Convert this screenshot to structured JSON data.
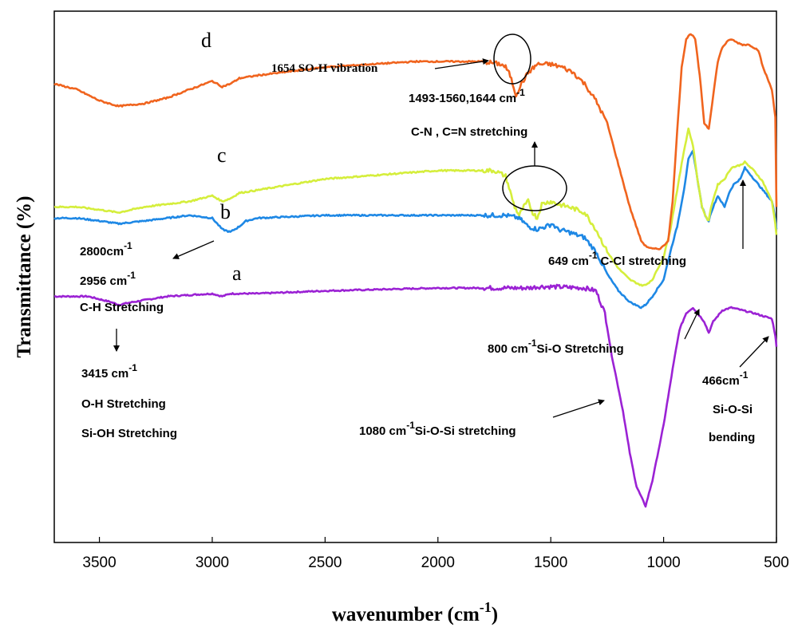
{
  "chart_data": {
    "type": "line",
    "title": "",
    "xlabel": "wavenumber (cm",
    "xlabel_sup": "-1",
    "xlabel_close": ")",
    "ylabel": "Transmittance (%)",
    "xlim": [
      3700,
      500
    ],
    "x_reversed": true,
    "y_ticks_shown": false,
    "x_ticks": [
      "3500",
      "3000",
      "2500",
      "2000",
      "1500",
      "1000",
      "500"
    ],
    "series": [
      {
        "name": "a",
        "color": "#9b22d4",
        "x": [
          3700,
          3550,
          3450,
          3415,
          3350,
          3200,
          3000,
          2956,
          2920,
          2800,
          2500,
          2000,
          1700,
          1600,
          1550,
          1500,
          1350,
          1300,
          1260,
          1230,
          1180,
          1150,
          1120,
          1080,
          1050,
          1000,
          960,
          930,
          900,
          870,
          820,
          800,
          780,
          740,
          700,
          650,
          600,
          560,
          520,
          505,
          500
        ],
        "y": [
          76,
          76,
          74,
          73,
          74,
          76,
          77,
          76,
          77,
          77,
          78,
          79,
          79,
          79,
          79.5,
          79.5,
          79,
          78,
          70,
          55,
          35,
          20,
          8,
          1,
          10,
          30,
          50,
          64,
          70,
          72,
          67,
          63,
          67,
          71,
          72,
          71,
          70,
          69,
          68,
          62,
          58
        ]
      },
      {
        "name": "b",
        "color": "#1e88e5",
        "x": [
          3700,
          3600,
          3500,
          3415,
          3300,
          3100,
          3000,
          2956,
          2920,
          2880,
          2850,
          2800,
          2500,
          2000,
          1700,
          1640,
          1600,
          1560,
          1520,
          1493,
          1470,
          1420,
          1350,
          1300,
          1250,
          1200,
          1150,
          1100,
          1080,
          1050,
          1000,
          970,
          940,
          910,
          890,
          870,
          850,
          830,
          810,
          800,
          790,
          760,
          730,
          710,
          690,
          660,
          640,
          600,
          560,
          520,
          505,
          500
        ],
        "y": [
          104,
          104,
          103,
          102,
          103,
          105,
          104,
          100,
          99,
          101,
          103,
          104,
          105,
          105,
          105,
          104,
          101,
          100,
          101,
          102,
          100,
          99,
          97,
          92,
          84,
          78,
          74,
          72,
          73,
          76,
          82,
          92,
          101,
          114,
          125,
          128,
          118,
          108,
          104,
          103,
          106,
          112,
          108,
          113,
          116,
          118,
          122,
          118,
          114,
          110,
          104,
          100
        ]
      },
      {
        "name": "c",
        "color": "#d5ee3c",
        "x": [
          3700,
          3600,
          3500,
          3415,
          3300,
          3100,
          3000,
          2956,
          2920,
          2880,
          2800,
          2500,
          2000,
          1750,
          1700,
          1660,
          1640,
          1620,
          1600,
          1580,
          1560,
          1540,
          1500,
          1470,
          1420,
          1350,
          1300,
          1250,
          1200,
          1150,
          1100,
          1080,
          1050,
          1000,
          970,
          940,
          910,
          890,
          870,
          850,
          830,
          810,
          800,
          790,
          760,
          730,
          700,
          660,
          640,
          600,
          560,
          520,
          505,
          500
        ],
        "y": [
          108,
          108,
          107,
          106,
          108,
          110,
          112,
          110,
          111,
          113,
          114,
          118,
          121,
          121,
          119,
          108,
          105,
          108,
          110,
          106,
          104,
          109,
          110,
          109,
          108,
          106,
          100,
          92,
          86,
          82,
          80,
          80,
          82,
          90,
          100,
          114,
          128,
          136,
          130,
          118,
          108,
          104,
          103,
          108,
          116,
          118,
          122,
          123,
          124,
          121,
          117,
          110,
          102,
          98
        ]
      },
      {
        "name": "d",
        "color": "#f0641e",
        "x": [
          3700,
          3600,
          3500,
          3415,
          3300,
          3200,
          3100,
          3000,
          2956,
          2920,
          2880,
          2800,
          2700,
          2500,
          2300,
          2100,
          2000,
          1900,
          1800,
          1720,
          1700,
          1680,
          1654,
          1630,
          1600,
          1560,
          1500,
          1450,
          1400,
          1350,
          1300,
          1250,
          1200,
          1150,
          1100,
          1080,
          1050,
          1020,
          1000,
          980,
          960,
          940,
          920,
          900,
          880,
          860,
          840,
          820,
          800,
          780,
          760,
          740,
          720,
          700,
          680,
          650,
          620,
          600,
          580,
          560,
          540,
          520,
          505,
          500
        ],
        "y": [
          152,
          150,
          146,
          144,
          145,
          147,
          150,
          153,
          151,
          152,
          154,
          155,
          156,
          158,
          159,
          160,
          160,
          160,
          160,
          159,
          158,
          155,
          148,
          152,
          156,
          159,
          159,
          158,
          156,
          152,
          146,
          138,
          123,
          108,
          96,
          94,
          93,
          93,
          94,
          96,
          110,
          135,
          158,
          168,
          170,
          168,
          155,
          138,
          136,
          148,
          160,
          165,
          167,
          168,
          167,
          166,
          166,
          165,
          164,
          158,
          154,
          150,
          140,
          108
        ]
      }
    ],
    "curve_labels": {
      "a": "a",
      "b": "b",
      "c": "c",
      "d": "d"
    },
    "annotations": {
      "so_h": "1654 SO-H vibration",
      "cn_range": "1493-1560,1644 cm",
      "cn_range_sup": "-1",
      "cn_label": "C-N , C=N stretching",
      "ch_2800": "2800cm",
      "ch_2800_sup": "-1",
      "ch_2956": "2956 cm",
      "ch_2956_sup": "-1",
      "ch_label": "C-H Stretching",
      "ccl_num": "649 cm",
      "ccl_sup": "-1",
      "ccl_label": "C-Cl stretching",
      "oh_num": "3415 cm",
      "oh_sup": "-1",
      "oh_label": "O-H Stretching",
      "sioh_label": "Si-OH Stretching",
      "sio_num": "800 cm",
      "sio_sup": "-1",
      "sio_label": "Si-O Stretching",
      "sios_num": "1080 cm",
      "sios_sup": "-1",
      "sios_label": "Si-O-Si stretching",
      "bend_num": "466cm",
      "bend_sup": "-1",
      "bend_label1": "Si-O-Si",
      "bend_label2": "bending"
    }
  }
}
